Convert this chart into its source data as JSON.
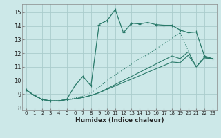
{
  "title": "",
  "xlabel": "Humidex (Indice chaleur)",
  "ylabel": "",
  "bg_color": "#cce8e8",
  "grid_color": "#aacccc",
  "line_color": "#2a7a6a",
  "xlim": [
    -0.5,
    23.5
  ],
  "ylim": [
    7.8,
    15.6
  ],
  "xticks": [
    0,
    1,
    2,
    3,
    4,
    5,
    6,
    7,
    8,
    9,
    10,
    11,
    12,
    13,
    14,
    15,
    16,
    17,
    18,
    19,
    20,
    21,
    22,
    23
  ],
  "yticks": [
    8,
    9,
    10,
    11,
    12,
    13,
    14,
    15
  ],
  "line1_x": [
    0,
    1,
    2,
    3,
    4,
    5,
    6,
    7,
    8,
    9,
    10,
    11,
    12,
    13,
    14,
    15,
    16,
    17,
    18,
    19,
    20,
    21,
    22,
    23
  ],
  "line1_y": [
    9.3,
    8.9,
    8.6,
    8.5,
    8.5,
    8.6,
    9.6,
    10.3,
    9.6,
    14.1,
    14.4,
    15.2,
    13.5,
    14.2,
    14.15,
    14.25,
    14.1,
    14.05,
    14.05,
    13.7,
    13.5,
    13.55,
    11.8,
    11.6
  ],
  "line2_x": [
    0,
    1,
    2,
    3,
    4,
    5,
    6,
    7,
    8,
    9,
    10,
    11,
    12,
    13,
    14,
    15,
    16,
    17,
    18,
    19,
    20,
    21,
    22,
    23
  ],
  "line2_y": [
    9.3,
    8.9,
    8.6,
    8.5,
    8.5,
    8.6,
    8.7,
    8.85,
    9.1,
    9.5,
    10.0,
    10.4,
    10.8,
    11.2,
    11.6,
    11.9,
    12.3,
    12.7,
    13.1,
    13.5,
    12.2,
    11.0,
    11.8,
    11.6
  ],
  "line3_x": [
    0,
    1,
    2,
    3,
    4,
    5,
    6,
    7,
    8,
    9,
    10,
    11,
    12,
    13,
    14,
    15,
    16,
    17,
    18,
    19,
    20,
    21,
    22,
    23
  ],
  "line3_y": [
    9.3,
    8.9,
    8.6,
    8.5,
    8.5,
    8.6,
    8.65,
    8.75,
    8.9,
    9.1,
    9.4,
    9.7,
    10.0,
    10.3,
    10.6,
    10.9,
    11.2,
    11.5,
    11.8,
    11.6,
    12.1,
    11.0,
    11.7,
    11.6
  ],
  "line4_x": [
    0,
    1,
    2,
    3,
    4,
    5,
    6,
    7,
    8,
    9,
    10,
    11,
    12,
    13,
    14,
    15,
    16,
    17,
    18,
    19,
    20,
    21,
    22,
    23
  ],
  "line4_y": [
    9.3,
    8.9,
    8.6,
    8.5,
    8.5,
    8.6,
    8.65,
    8.75,
    8.9,
    9.1,
    9.35,
    9.6,
    9.85,
    10.1,
    10.35,
    10.6,
    10.85,
    11.1,
    11.35,
    11.3,
    11.85,
    11.0,
    11.65,
    11.6
  ]
}
